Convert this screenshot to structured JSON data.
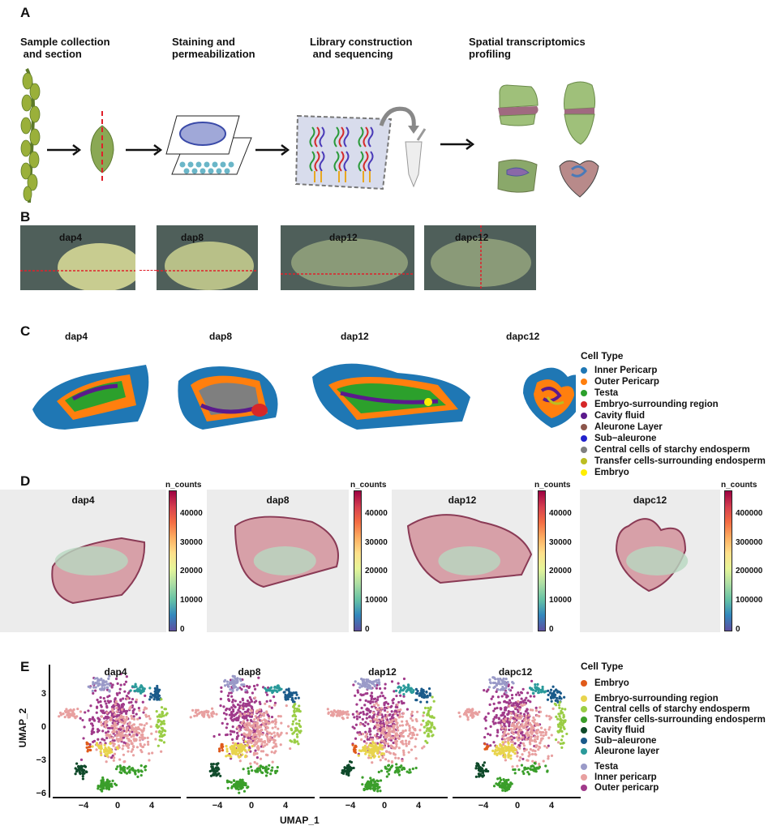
{
  "panel_a": {
    "label": "A",
    "steps": [
      {
        "title": "Sample collection\n and section",
        "icon": "wheat-spike-and-seed"
      },
      {
        "title": "Staining and\npermeabilization",
        "icon": "tissue-slide"
      },
      {
        "title": "Library construction\n and sequencing",
        "icon": "barcode-array-and-tube"
      },
      {
        "title": "Spatial transcriptomics\nprofiling",
        "icon": "3d-seed-models"
      }
    ]
  },
  "panel_b": {
    "label": "B",
    "photos": [
      "dap4",
      "dap8",
      "dap12",
      "dapc12"
    ],
    "section_line_color": "#e0202a"
  },
  "panel_c": {
    "label": "C",
    "titles": [
      "dap4",
      "dap8",
      "dap12",
      "dapc12"
    ],
    "legend": {
      "title": "Cell Type",
      "items": [
        {
          "label": "Inner Pericarp",
          "color": "#1f77b4"
        },
        {
          "label": "Outer Pericarp",
          "color": "#ff7f0e"
        },
        {
          "label": "Testa",
          "color": "#2ca02c"
        },
        {
          "label": "Embryo-surrounding region",
          "color": "#d62728"
        },
        {
          "label": "Cavity fluid",
          "color": "#5b1a8c"
        },
        {
          "label": "Aleurone Layer",
          "color": "#8c564b"
        },
        {
          "label": "Sub−aleurone",
          "color": "#2222cc"
        },
        {
          "label": "Central cells of starchy endosperm",
          "color": "#7f7f7f"
        },
        {
          "label": "Transfer cells-surrounding endosperm",
          "color": "#bcbd22"
        },
        {
          "label": "Embryo",
          "color": "#ffee00"
        }
      ]
    }
  },
  "panel_d": {
    "label": "D",
    "colorbar_title": "n_counts",
    "panels": [
      {
        "title": "dap4",
        "ticks": [
          "0",
          "10000",
          "20000",
          "30000",
          "40000"
        ],
        "max": 48000
      },
      {
        "title": "dap8",
        "ticks": [
          "0",
          "10000",
          "20000",
          "30000",
          "40000"
        ],
        "max": 48000
      },
      {
        "title": "dap12",
        "ticks": [
          "0",
          "10000",
          "20000",
          "30000",
          "40000"
        ],
        "max": 48000
      },
      {
        "title": "dapc12",
        "ticks": [
          "0",
          "100000",
          "200000",
          "300000",
          "400000"
        ],
        "max": 480000
      }
    ]
  },
  "panel_e": {
    "label": "E",
    "titles": [
      "dap4",
      "dap8",
      "dap12",
      "dapc12"
    ],
    "xlabel": "UMAP_1",
    "ylabel": "UMAP_2",
    "xticks": [
      "−4",
      "0",
      "4"
    ],
    "yticks": [
      "3",
      "0",
      "−3",
      "−6"
    ],
    "legend": {
      "title": "Cell Type",
      "groups": [
        [
          {
            "label": "Embryo",
            "color": "#e05a1a"
          }
        ],
        [
          {
            "label": "Embryo-surrounding region",
            "color": "#e8d44d"
          },
          {
            "label": "Central cells of starchy endosperm",
            "color": "#9acd45"
          },
          {
            "label": "Transfer cells-surrounding endosperm",
            "color": "#3a9e2a"
          },
          {
            "label": "Cavity fluid",
            "color": "#0f4a2a"
          },
          {
            "label": "Sub−aleurone",
            "color": "#1a5a8a"
          },
          {
            "label": "Aleurone layer",
            "color": "#2a9a9a"
          }
        ],
        [
          {
            "label": "Testa",
            "color": "#9a9ac8"
          },
          {
            "label": "Inner pericarp",
            "color": "#e8a0a0"
          },
          {
            "label": "Outer pericarp",
            "color": "#a03a8a"
          }
        ]
      ]
    }
  }
}
